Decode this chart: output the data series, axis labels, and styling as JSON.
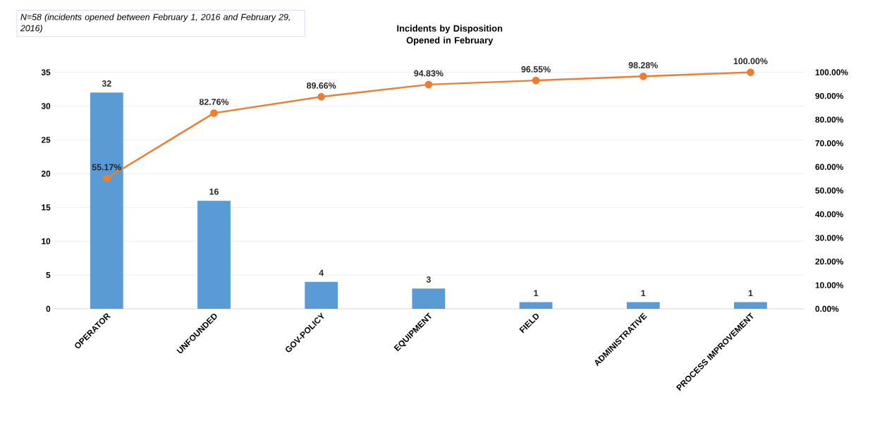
{
  "chart_data": {
    "type": "bar",
    "title": "Incidents by Disposition Opened in February",
    "annotations": [
      "N=58 (incidents opened between February 1, 2016 and February 29, 2016)"
    ],
    "categories": [
      "OPERATOR",
      "UNFOUNDED",
      "GOV-POLICY",
      "EQUIPMENT",
      "FIELD",
      "ADMINISTRATIVE",
      "PROCESS IMPROVEMENT"
    ],
    "series": [
      {
        "color": "#5b9bd5",
        "values": [
          32,
          16,
          4,
          3,
          1,
          1,
          1
        ]
      },
      {
        "type": "line",
        "axis": "y2",
        "color": "#ed7d31",
        "values": [
          55.17,
          82.76,
          89.66,
          94.83,
          96.55,
          98.28,
          100.0
        ],
        "value_labels": [
          "55.17%",
          "82.76%",
          "89.66%",
          "94.83%",
          "96.55%",
          "98.28%",
          "100.00%"
        ]
      }
    ],
    "data_labels": true,
    "marker": "circle",
    "grid": "y",
    "ylim": [
      0,
      35
    ],
    "yticks": [
      0,
      5,
      10,
      15,
      20,
      25,
      30,
      35
    ],
    "y2lim": [
      0,
      100
    ],
    "y2ticks": [
      {
        "value": 0,
        "label": "0.00%"
      },
      {
        "value": 10,
        "label": "10.00%"
      },
      {
        "value": 20,
        "label": "20.00%"
      },
      {
        "value": 30,
        "label": "30.00%"
      },
      {
        "value": 40,
        "label": "40.00%"
      },
      {
        "value": 50,
        "label": "50.00%"
      },
      {
        "value": 60,
        "label": "60.00%"
      },
      {
        "value": 70,
        "label": "70.00%"
      },
      {
        "value": 80,
        "label": "80.00%"
      },
      {
        "value": 90,
        "label": "90.00%"
      },
      {
        "value": 100,
        "label": "100.00%"
      }
    ]
  }
}
